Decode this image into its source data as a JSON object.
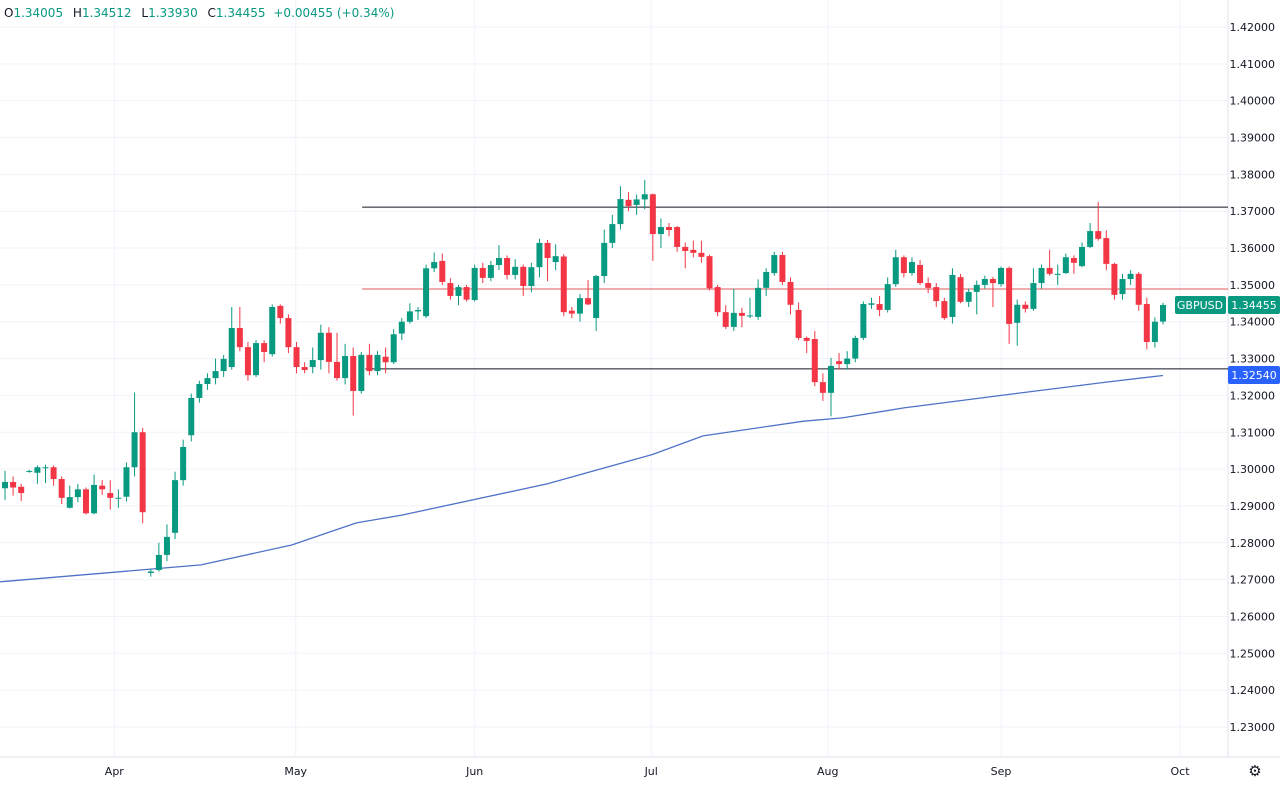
{
  "legend": {
    "open_label": "O",
    "open": "1.34005",
    "high_label": "H",
    "high": "1.34512",
    "low_label": "L",
    "low": "1.33930",
    "close_label": "C",
    "close": "1.34455",
    "change": "+0.00455 (+0.34%)"
  },
  "colors": {
    "up": "#089981",
    "down": "#f23645",
    "ma": "#4f72c7",
    "level": "#131722",
    "mid_level": "#e0585b",
    "ma_label": "#2962ff"
  },
  "icons": {
    "settings": "gear-icon"
  },
  "chart_data": {
    "type": "candlestick",
    "symbol": "GBPUSD",
    "last_price": "1.34455",
    "ma_value_label": "1.32540",
    "ylim": [
      1.22185,
      1.42733
    ],
    "y_ticks": [
      "1.42000",
      "1.41000",
      "1.40000",
      "1.39000",
      "1.38000",
      "1.37000",
      "1.36000",
      "1.35000",
      "1.34000",
      "1.33000",
      "1.32000",
      "1.31000",
      "1.30000",
      "1.29000",
      "1.28000",
      "1.27000",
      "1.26000",
      "1.25000",
      "1.24000",
      "1.23000"
    ],
    "x_ticks": [
      {
        "label": "Apr",
        "index": 13.5
      },
      {
        "label": "May",
        "index": 35.9
      },
      {
        "label": "Jun",
        "index": 58.0
      },
      {
        "label": "Jul",
        "index": 79.8
      },
      {
        "label": "Aug",
        "index": 101.6
      },
      {
        "label": "Sep",
        "index": 123.0
      },
      {
        "label": "Oct",
        "index": 145.1
      }
    ],
    "levels": [
      {
        "name": "resistance",
        "price": 1.3711,
        "from_index": 44.1
      },
      {
        "name": "mid",
        "price": 1.3489,
        "from_index": 44.1
      },
      {
        "name": "support",
        "price": 1.3272,
        "from_index": 44.5
      }
    ],
    "moving_average": [
      [
        -0.6,
        1.2694
      ],
      [
        24.2,
        1.274
      ],
      [
        35.4,
        1.2794
      ],
      [
        43.4,
        1.2854
      ],
      [
        49,
        1.2875
      ],
      [
        67,
        1.296
      ],
      [
        80,
        1.304
      ],
      [
        86.2,
        1.309
      ],
      [
        98.6,
        1.313
      ],
      [
        103.4,
        1.3139
      ],
      [
        111,
        1.3166
      ],
      [
        123.4,
        1.3201
      ],
      [
        136,
        1.3236
      ],
      [
        143,
        1.3254
      ]
    ],
    "ohlc": [
      [
        1.2948,
        1.2995,
        1.2916,
        1.2965
      ],
      [
        1.2965,
        1.298,
        1.2928,
        1.295
      ],
      [
        1.2952,
        1.296,
        1.2913,
        1.2935
      ],
      [
        1.2994,
        1.2998,
        1.299,
        1.2995
      ],
      [
        1.299,
        1.301,
        1.296,
        1.3005
      ],
      [
        1.3004,
        1.3012,
        1.2962,
        1.3005
      ],
      [
        1.3005,
        1.301,
        1.2955,
        1.2973
      ],
      [
        1.2973,
        1.298,
        1.2905,
        1.2922
      ],
      [
        1.2895,
        1.2955,
        1.2893,
        1.2924
      ],
      [
        1.2924,
        1.296,
        1.291,
        1.2945
      ],
      [
        1.2945,
        1.295,
        1.2877,
        1.288
      ],
      [
        1.288,
        1.2985,
        1.2877,
        1.2957
      ],
      [
        1.2955,
        1.297,
        1.293,
        1.2945
      ],
      [
        1.2935,
        1.297,
        1.289,
        1.2922
      ],
      [
        1.2921,
        1.2945,
        1.2895,
        1.2922
      ],
      [
        1.2925,
        1.3018,
        1.2912,
        1.3005
      ],
      [
        1.3005,
        1.3208,
        1.298,
        1.31
      ],
      [
        1.31,
        1.3112,
        1.2853,
        1.2883
      ],
      [
        1.2718,
        1.273,
        1.2708,
        1.2722
      ],
      [
        1.2726,
        1.28,
        1.2722,
        1.2767
      ],
      [
        1.2767,
        1.285,
        1.275,
        1.2816
      ],
      [
        1.2827,
        1.2993,
        1.281,
        1.297
      ],
      [
        1.297,
        1.308,
        1.2955,
        1.306
      ],
      [
        1.3092,
        1.3205,
        1.3075,
        1.3193
      ],
      [
        1.3193,
        1.324,
        1.318,
        1.3231
      ],
      [
        1.3231,
        1.326,
        1.3215,
        1.3247
      ],
      [
        1.3247,
        1.33,
        1.323,
        1.3266
      ],
      [
        1.3266,
        1.331,
        1.325,
        1.3299
      ],
      [
        1.3277,
        1.344,
        1.327,
        1.3383
      ],
      [
        1.3383,
        1.344,
        1.332,
        1.3331
      ],
      [
        1.3331,
        1.3345,
        1.324,
        1.3255
      ],
      [
        1.3255,
        1.335,
        1.325,
        1.3342
      ],
      [
        1.3342,
        1.335,
        1.329,
        1.3318
      ],
      [
        1.3312,
        1.3447,
        1.3305,
        1.344
      ],
      [
        1.3443,
        1.3447,
        1.3395,
        1.341
      ],
      [
        1.341,
        1.342,
        1.3315,
        1.3331
      ],
      [
        1.3331,
        1.3345,
        1.326,
        1.3277
      ],
      [
        1.3277,
        1.329,
        1.326,
        1.3269
      ],
      [
        1.3277,
        1.333,
        1.326,
        1.3296
      ],
      [
        1.3296,
        1.3392,
        1.327,
        1.337
      ],
      [
        1.337,
        1.3385,
        1.326,
        1.3291
      ],
      [
        1.3291,
        1.337,
        1.324,
        1.3247
      ],
      [
        1.3247,
        1.334,
        1.323,
        1.3307
      ],
      [
        1.3307,
        1.333,
        1.3145,
        1.3212
      ],
      [
        1.3212,
        1.3318,
        1.3205,
        1.331
      ],
      [
        1.331,
        1.334,
        1.3255,
        1.3266
      ],
      [
        1.3266,
        1.332,
        1.3255,
        1.331
      ],
      [
        1.3305,
        1.333,
        1.326,
        1.329
      ],
      [
        1.329,
        1.338,
        1.3285,
        1.3366
      ],
      [
        1.3368,
        1.341,
        1.335,
        1.34
      ],
      [
        1.34,
        1.345,
        1.3395,
        1.3428
      ],
      [
        1.3428,
        1.344,
        1.3405,
        1.3432
      ],
      [
        1.3415,
        1.3555,
        1.341,
        1.3545
      ],
      [
        1.3545,
        1.3588,
        1.3535,
        1.3562
      ],
      [
        1.3565,
        1.3585,
        1.35,
        1.3508
      ],
      [
        1.3505,
        1.3518,
        1.346,
        1.347
      ],
      [
        1.347,
        1.35,
        1.3445,
        1.3494
      ],
      [
        1.3494,
        1.35,
        1.3455,
        1.346
      ],
      [
        1.3459,
        1.3555,
        1.3455,
        1.3546
      ],
      [
        1.3546,
        1.356,
        1.3505,
        1.3519
      ],
      [
        1.3519,
        1.3565,
        1.351,
        1.3554
      ],
      [
        1.3554,
        1.3608,
        1.354,
        1.3573
      ],
      [
        1.3573,
        1.358,
        1.3515,
        1.3527
      ],
      [
        1.3527,
        1.357,
        1.3515,
        1.3549
      ],
      [
        1.3549,
        1.3555,
        1.347,
        1.3497
      ],
      [
        1.3497,
        1.356,
        1.348,
        1.3548
      ],
      [
        1.3548,
        1.3625,
        1.352,
        1.3614
      ],
      [
        1.3614,
        1.3622,
        1.351,
        1.3573
      ],
      [
        1.3562,
        1.361,
        1.354,
        1.3578
      ],
      [
        1.3577,
        1.3583,
        1.3415,
        1.3426
      ],
      [
        1.343,
        1.344,
        1.341,
        1.3422
      ],
      [
        1.3422,
        1.3475,
        1.34,
        1.3464
      ],
      [
        1.3464,
        1.3513,
        1.3445,
        1.3447
      ],
      [
        1.341,
        1.3527,
        1.3375,
        1.3524
      ],
      [
        1.3524,
        1.365,
        1.3505,
        1.3614
      ],
      [
        1.3614,
        1.369,
        1.36,
        1.3665
      ],
      [
        1.3665,
        1.3768,
        1.365,
        1.3733
      ],
      [
        1.3731,
        1.3752,
        1.37,
        1.3714
      ],
      [
        1.3717,
        1.3745,
        1.369,
        1.3732
      ],
      [
        1.3732,
        1.3785,
        1.3705,
        1.3746
      ],
      [
        1.3746,
        1.3748,
        1.3565,
        1.3638
      ],
      [
        1.3638,
        1.368,
        1.36,
        1.3657
      ],
      [
        1.3657,
        1.3668,
        1.3632,
        1.3649
      ],
      [
        1.3657,
        1.366,
        1.359,
        1.3603
      ],
      [
        1.3603,
        1.3615,
        1.3545,
        1.3592
      ],
      [
        1.3595,
        1.362,
        1.3575,
        1.3587
      ],
      [
        1.3587,
        1.362,
        1.356,
        1.3576
      ],
      [
        1.3578,
        1.3582,
        1.3485,
        1.3491
      ],
      [
        1.3494,
        1.35,
        1.3415,
        1.3426
      ],
      [
        1.3426,
        1.3445,
        1.338,
        1.3386
      ],
      [
        1.3386,
        1.349,
        1.3375,
        1.3424
      ],
      [
        1.3424,
        1.3438,
        1.3385,
        1.3416
      ],
      [
        1.3415,
        1.3465,
        1.341,
        1.3417
      ],
      [
        1.3413,
        1.3515,
        1.3405,
        1.3492
      ],
      [
        1.3492,
        1.3545,
        1.347,
        1.3535
      ],
      [
        1.3532,
        1.359,
        1.3525,
        1.3581
      ],
      [
        1.3581,
        1.359,
        1.35,
        1.3508
      ],
      [
        1.3508,
        1.352,
        1.342,
        1.3446
      ],
      [
        1.3432,
        1.3452,
        1.335,
        1.3356
      ],
      [
        1.3356,
        1.336,
        1.3315,
        1.3348
      ],
      [
        1.3353,
        1.3375,
        1.3225,
        1.3236
      ],
      [
        1.3236,
        1.326,
        1.3185,
        1.3207
      ],
      [
        1.3207,
        1.3302,
        1.3143,
        1.328
      ],
      [
        1.3293,
        1.3315,
        1.327,
        1.3285
      ],
      [
        1.3285,
        1.332,
        1.327,
        1.33
      ],
      [
        1.33,
        1.3362,
        1.329,
        1.3356
      ],
      [
        1.3356,
        1.3455,
        1.335,
        1.3448
      ],
      [
        1.3446,
        1.3465,
        1.3435,
        1.345
      ],
      [
        1.3448,
        1.347,
        1.3415,
        1.3432
      ],
      [
        1.3432,
        1.352,
        1.3425,
        1.3502
      ],
      [
        1.3502,
        1.3595,
        1.3495,
        1.3575
      ],
      [
        1.3575,
        1.358,
        1.352,
        1.3532
      ],
      [
        1.3532,
        1.3575,
        1.3525,
        1.3562
      ],
      [
        1.3554,
        1.3568,
        1.35,
        1.3505
      ],
      [
        1.3505,
        1.352,
        1.3478,
        1.3492
      ],
      [
        1.3494,
        1.3505,
        1.344,
        1.3456
      ],
      [
        1.3456,
        1.3465,
        1.3405,
        1.341
      ],
      [
        1.3413,
        1.3545,
        1.3395,
        1.3527
      ],
      [
        1.3521,
        1.353,
        1.345,
        1.3454
      ],
      [
        1.3454,
        1.349,
        1.344,
        1.3481
      ],
      [
        1.3481,
        1.3512,
        1.342,
        1.35
      ],
      [
        1.35,
        1.3525,
        1.349,
        1.3516
      ],
      [
        1.3516,
        1.3522,
        1.344,
        1.3505
      ],
      [
        1.3502,
        1.355,
        1.3495,
        1.3546
      ],
      [
        1.3546,
        1.355,
        1.334,
        1.3394
      ],
      [
        1.3397,
        1.346,
        1.3335,
        1.3446
      ],
      [
        1.3446,
        1.3455,
        1.3425,
        1.3435
      ],
      [
        1.3435,
        1.3545,
        1.343,
        1.3505
      ],
      [
        1.3505,
        1.3555,
        1.349,
        1.3546
      ],
      [
        1.3546,
        1.3595,
        1.3525,
        1.353
      ],
      [
        1.3528,
        1.3555,
        1.35,
        1.353
      ],
      [
        1.3532,
        1.3585,
        1.353,
        1.3575
      ],
      [
        1.3573,
        1.358,
        1.353,
        1.356
      ],
      [
        1.3551,
        1.3615,
        1.3548,
        1.3603
      ],
      [
        1.3603,
        1.3668,
        1.36,
        1.3646
      ],
      [
        1.3646,
        1.3725,
        1.362,
        1.3625
      ],
      [
        1.3627,
        1.3648,
        1.354,
        1.3557
      ],
      [
        1.3557,
        1.356,
        1.346,
        1.3473
      ],
      [
        1.3475,
        1.353,
        1.346,
        1.3516
      ],
      [
        1.3516,
        1.354,
        1.35,
        1.353
      ],
      [
        1.353,
        1.3535,
        1.343,
        1.3446
      ],
      [
        1.3448,
        1.3465,
        1.3325,
        1.3345
      ],
      [
        1.3345,
        1.3412,
        1.333,
        1.34
      ],
      [
        1.34005,
        1.34512,
        1.3393,
        1.34455
      ]
    ]
  }
}
